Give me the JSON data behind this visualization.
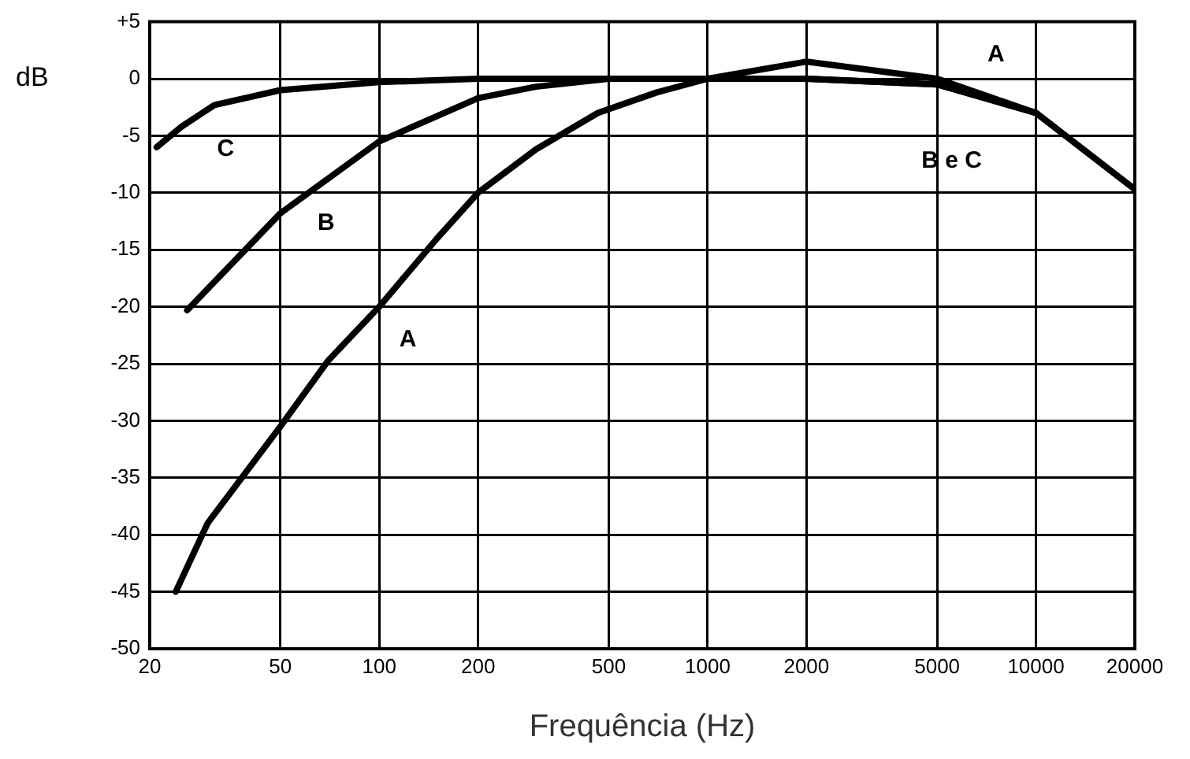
{
  "chart_data": {
    "type": "line",
    "xlabel": "Frequência (Hz)",
    "ylabel": "dB",
    "log": "x",
    "xlim": [
      20,
      20000
    ],
    "xticks": [
      20,
      50,
      100,
      200,
      500,
      1000,
      2000,
      5000,
      10000,
      20000
    ],
    "ylim": [
      -50,
      5
    ],
    "yticks": [
      -50,
      -45,
      -40,
      -35,
      -30,
      -25,
      -20,
      -15,
      -10,
      -5,
      0,
      {
        "value": 5,
        "label": "+5"
      }
    ],
    "grid": true,
    "legend": false,
    "marker": "none",
    "line_style": "solid",
    "series": [
      {
        "name": "A",
        "color": "#000000",
        "x": [
          24,
          30,
          50,
          70,
          100,
          150,
          200,
          300,
          463,
          700,
          1000,
          2000,
          5000,
          10000
        ],
        "values": [
          -45,
          -39,
          -30.5,
          -24.7,
          -20,
          -14,
          -10,
          -6.2,
          -3,
          -1.2,
          0,
          1.5,
          0,
          -3
        ]
      },
      {
        "name": "B",
        "color": "#000000",
        "x": [
          26,
          50,
          100,
          200,
          300,
          500,
          1000,
          2000,
          5000,
          10000,
          20000
        ],
        "values": [
          -20.3,
          -11.8,
          -5.5,
          -1.7,
          -0.7,
          0,
          0,
          0,
          -0.5,
          -3,
          -9.7
        ]
      },
      {
        "name": "C",
        "color": "#000000",
        "x": [
          21,
          25,
          31.5,
          50,
          100,
          200,
          500,
          1000,
          2000,
          5000,
          10000,
          20000
        ],
        "values": [
          -6,
          -4.2,
          -2.3,
          -1,
          -0.3,
          0,
          0,
          0,
          0,
          -0.5,
          -3,
          -9.7
        ]
      }
    ],
    "annotations": [
      "A",
      "B e C"
    ]
  }
}
